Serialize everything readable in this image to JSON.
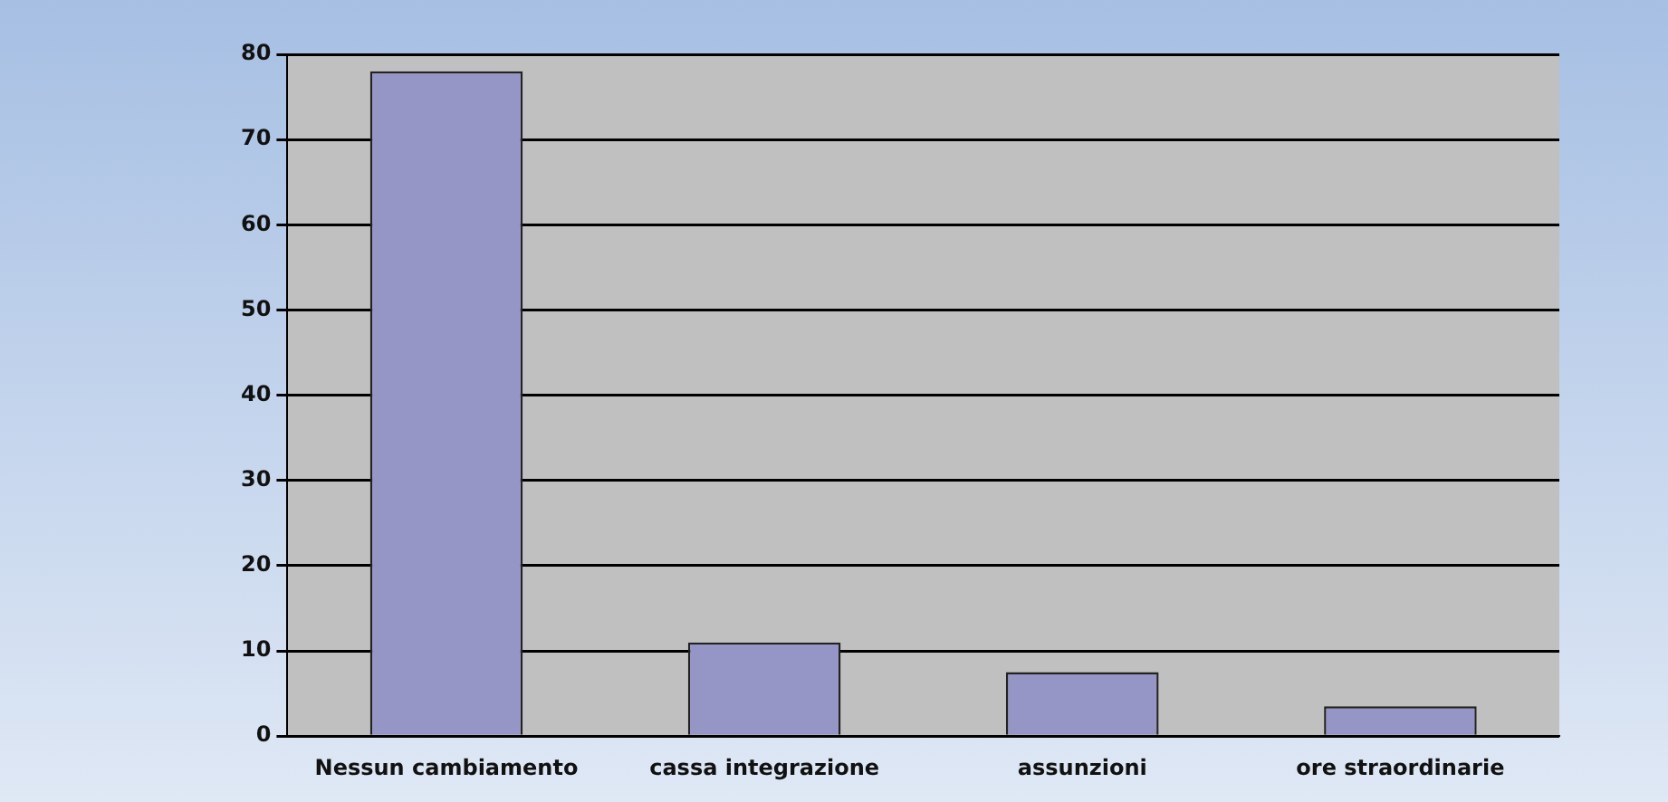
{
  "chart_data": {
    "type": "bar",
    "categories": [
      "Nessun cambiamento",
      "cassa integrazione",
      "assunzioni",
      "ore straordinarie"
    ],
    "values": [
      78,
      11,
      7.5,
      3.5
    ],
    "color": "#9595c6",
    "ylim": [
      0,
      80
    ],
    "yticks": [
      0,
      10,
      20,
      30,
      40,
      50,
      60,
      70,
      80
    ],
    "grid": "y",
    "legend": false
  }
}
